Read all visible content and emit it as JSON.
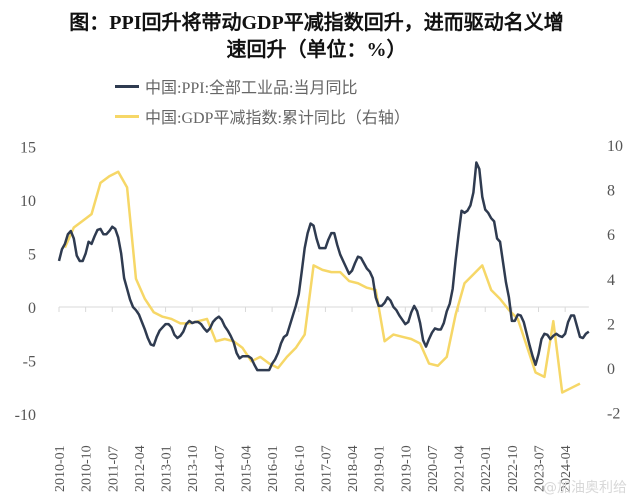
{
  "title_line1": "图：PPI回升将带动GDP平减指数回升，进而驱动名义增",
  "title_line2": "速回升（单位：%）",
  "watermark": "@加油奥利给",
  "chart_data": {
    "type": "line",
    "title": "图：PPI回升将带动GDP平减指数回升，进而驱动名义增速回升（单位：%）",
    "legend_position": "top",
    "grid": false,
    "left_axis": {
      "ylim": [
        -10,
        15
      ],
      "ticks": [
        15,
        10,
        5,
        0,
        -5,
        -10
      ],
      "tick_labels": [
        "15",
        "10",
        "5",
        "0",
        "-5",
        "-10"
      ]
    },
    "right_axis": {
      "ylim": [
        -2,
        10
      ],
      "ticks": [
        10,
        8,
        6,
        4,
        2,
        0,
        -2
      ],
      "tick_labels": [
        "10",
        "8",
        "6",
        "4",
        "2",
        "0",
        "-2"
      ]
    },
    "x_tick_labels": [
      "2010-01",
      "2010-10",
      "2011-07",
      "2012-04",
      "2013-01",
      "2013-10",
      "2014-07",
      "2015-04",
      "2016-01",
      "2016-10",
      "2017-07",
      "2018-04",
      "2019-01",
      "2019-10",
      "2020-07",
      "2021-04",
      "2022-01",
      "2022-10",
      "2023-07",
      "2024-04"
    ],
    "x_range": [
      "2010-01",
      "2024-12"
    ],
    "series": [
      {
        "name": "中国:PPI:全部工业品:当月同比",
        "axis": "left",
        "color": "#2f3b50",
        "start": "2010-01",
        "frequency": "monthly",
        "values": [
          4.3,
          5.4,
          5.9,
          6.8,
          7.1,
          6.4,
          4.8,
          4.3,
          4.3,
          5.0,
          6.1,
          5.9,
          6.6,
          7.2,
          7.3,
          6.8,
          6.8,
          7.1,
          7.5,
          7.3,
          6.5,
          5.0,
          2.7,
          1.7,
          0.7,
          0.0,
          -0.3,
          -0.7,
          -1.4,
          -2.1,
          -2.9,
          -3.5,
          -3.6,
          -2.8,
          -2.2,
          -1.9,
          -1.6,
          -1.6,
          -1.9,
          -2.6,
          -2.9,
          -2.7,
          -2.3,
          -1.6,
          -1.3,
          -1.5,
          -1.4,
          -1.4,
          -1.6,
          -2.0,
          -2.3,
          -2.0,
          -1.4,
          -1.1,
          -0.9,
          -1.2,
          -1.8,
          -2.2,
          -2.7,
          -3.3,
          -4.3,
          -4.8,
          -4.6,
          -4.6,
          -4.6,
          -4.8,
          -5.4,
          -5.9,
          -5.9,
          -5.9,
          -5.9,
          -5.9,
          -5.3,
          -4.9,
          -4.3,
          -3.4,
          -2.8,
          -2.6,
          -1.7,
          -0.8,
          0.1,
          1.2,
          3.3,
          5.5,
          6.9,
          7.8,
          7.6,
          6.4,
          5.5,
          5.5,
          5.5,
          6.3,
          6.9,
          6.9,
          5.8,
          4.9,
          4.3,
          3.7,
          3.1,
          3.4,
          4.1,
          4.7,
          4.6,
          4.1,
          3.6,
          3.3,
          2.7,
          0.9,
          0.1,
          0.1,
          0.4,
          0.9,
          0.6,
          0.0,
          -0.3,
          -0.8,
          -1.2,
          -1.6,
          -1.4,
          -0.5,
          0.1,
          -0.4,
          -1.5,
          -3.1,
          -3.7,
          -3.0,
          -2.4,
          -2.0,
          -2.1,
          -2.1,
          -1.5,
          -0.4,
          0.3,
          1.7,
          4.4,
          6.8,
          9.0,
          8.8,
          9.0,
          9.5,
          10.7,
          13.5,
          12.9,
          10.3,
          9.1,
          8.8,
          8.3,
          8.0,
          6.4,
          6.1,
          4.2,
          2.3,
          0.9,
          -1.3,
          -1.3,
          -0.7,
          -0.8,
          -1.4,
          -2.5,
          -3.6,
          -4.6,
          -5.4,
          -4.4,
          -3.0,
          -2.5,
          -2.6,
          -3.0,
          -2.7,
          -2.5,
          -2.7,
          -2.8,
          -2.5,
          -1.4,
          -0.8,
          -0.8,
          -1.8,
          -2.8,
          -2.9,
          -2.5,
          -2.3
        ]
      },
      {
        "name": "中国:GDP平减指数:累计同比（右轴）",
        "axis": "right",
        "color": "#f6d767",
        "frequency": "quarterly",
        "points": [
          [
            "2010-03",
            5.4
          ],
          [
            "2010-06",
            6.3
          ],
          [
            "2010-09",
            6.6
          ],
          [
            "2010-12",
            6.9
          ],
          [
            "2011-03",
            8.3
          ],
          [
            "2011-06",
            8.6
          ],
          [
            "2011-09",
            8.8
          ],
          [
            "2011-12",
            8.1
          ],
          [
            "2012-03",
            4.0
          ],
          [
            "2012-06",
            3.1
          ],
          [
            "2012-09",
            2.5
          ],
          [
            "2012-12",
            2.3
          ],
          [
            "2013-03",
            2.2
          ],
          [
            "2013-06",
            2.0
          ],
          [
            "2013-09",
            2.0
          ],
          [
            "2013-12",
            2.1
          ],
          [
            "2014-03",
            2.2
          ],
          [
            "2014-06",
            1.2
          ],
          [
            "2014-09",
            1.3
          ],
          [
            "2014-12",
            1.2
          ],
          [
            "2015-03",
            0.9
          ],
          [
            "2015-06",
            0.3
          ],
          [
            "2015-09",
            0.5
          ],
          [
            "2015-12",
            0.2
          ],
          [
            "2016-03",
            0.0
          ],
          [
            "2016-06",
            0.5
          ],
          [
            "2016-09",
            0.9
          ],
          [
            "2016-12",
            1.5
          ],
          [
            "2017-03",
            4.6
          ],
          [
            "2017-06",
            4.4
          ],
          [
            "2017-09",
            4.3
          ],
          [
            "2017-12",
            4.3
          ],
          [
            "2018-03",
            3.9
          ],
          [
            "2018-06",
            3.8
          ],
          [
            "2018-09",
            3.6
          ],
          [
            "2018-12",
            3.5
          ],
          [
            "2019-03",
            1.2
          ],
          [
            "2019-06",
            1.5
          ],
          [
            "2019-09",
            1.4
          ],
          [
            "2019-12",
            1.3
          ],
          [
            "2020-03",
            1.1
          ],
          [
            "2020-06",
            0.2
          ],
          [
            "2020-09",
            0.1
          ],
          [
            "2020-12",
            0.5
          ],
          [
            "2021-03",
            2.4
          ],
          [
            "2021-06",
            3.8
          ],
          [
            "2021-09",
            4.2
          ],
          [
            "2021-12",
            4.6
          ],
          [
            "2022-03",
            3.5
          ],
          [
            "2022-06",
            3.1
          ],
          [
            "2022-09",
            2.6
          ],
          [
            "2022-12",
            2.2
          ],
          [
            "2023-03",
            1.0
          ],
          [
            "2023-06",
            -0.2
          ],
          [
            "2023-09",
            -0.4
          ],
          [
            "2023-12",
            2.1
          ],
          [
            "2024-03",
            -1.1
          ],
          [
            "2024-06",
            -0.9
          ],
          [
            "2024-09",
            -0.7
          ]
        ]
      }
    ]
  }
}
